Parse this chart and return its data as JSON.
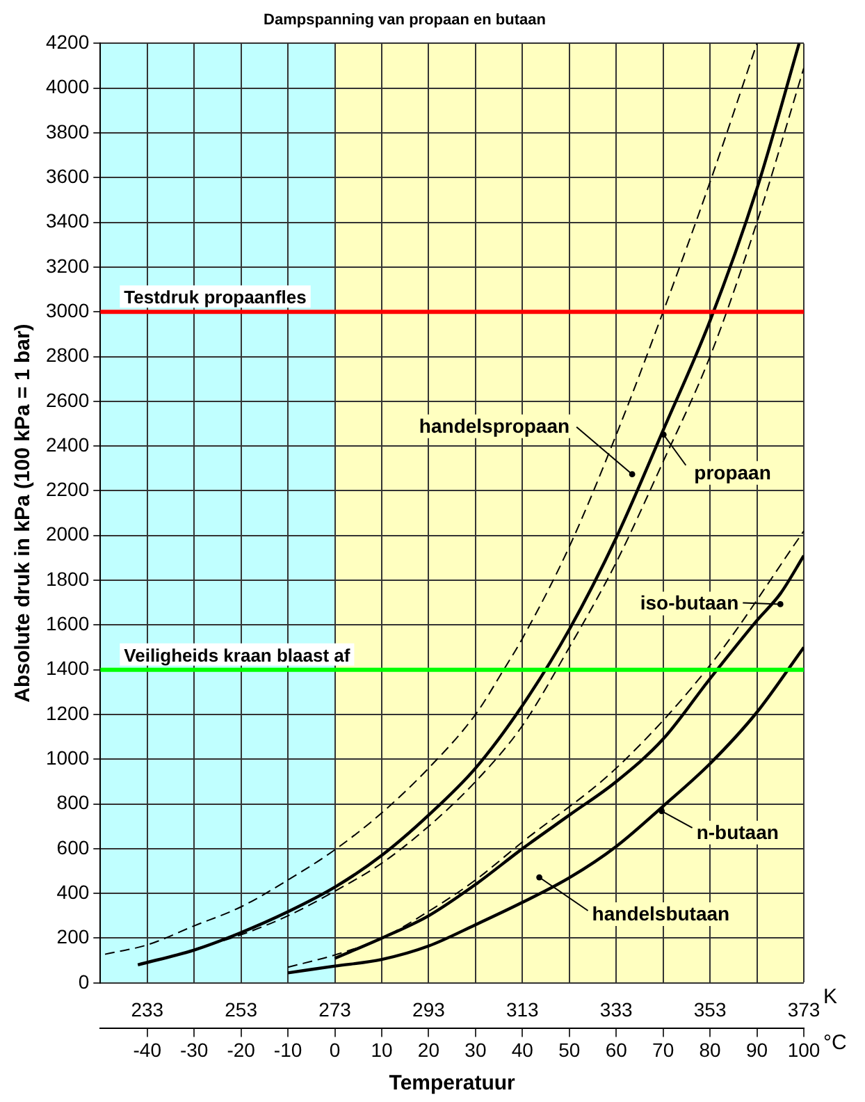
{
  "chart_data": {
    "type": "line",
    "title": "Dampspanning van propaan en butaan",
    "xlabel": "Temperatuur",
    "ylabel": "Absolute druk in kPa (100 kPa = 1 bar)",
    "xlim": [
      -50,
      100
    ],
    "xticks": [
      -40,
      -30,
      -20,
      -10,
      0,
      10,
      20,
      30,
      40,
      50,
      60,
      70,
      80,
      90,
      100
    ],
    "x2lim": [
      223,
      373
    ],
    "x2ticks": [
      233,
      253,
      273,
      293,
      313,
      333,
      353,
      373
    ],
    "ylim": [
      0,
      4200
    ],
    "yticks": [
      0,
      200,
      400,
      600,
      800,
      1000,
      1200,
      1400,
      1600,
      1800,
      2000,
      2200,
      2400,
      2600,
      2800,
      3000,
      3200,
      3400,
      3600,
      3800,
      4000,
      4200
    ],
    "grid": true,
    "legend": false,
    "marker": "none",
    "series": [
      {
        "color": "#000000",
        "line_style": "solid",
        "x": [
          -42,
          -30,
          -20,
          -10,
          0,
          10,
          20,
          30,
          40,
          50,
          60,
          70,
          80,
          90,
          99
        ],
        "values": [
          81,
          147,
          225,
          318,
          428,
          570,
          750,
          960,
          1240,
          1580,
          1990,
          2470,
          2960,
          3550,
          4200
        ]
      },
      {
        "color": "#000000",
        "line_style": "dashed",
        "x": [
          -49,
          -40,
          -30,
          -20,
          -10,
          0,
          10,
          20,
          30,
          36,
          40,
          50,
          60,
          70,
          80,
          90
        ],
        "values": [
          128,
          170,
          255,
          340,
          460,
          595,
          760,
          960,
          1200,
          1400,
          1540,
          1950,
          2450,
          3000,
          3580,
          4200
        ]
      },
      {
        "color": "#000000",
        "line_style": "dashed",
        "x": [
          -30,
          -20,
          -10,
          0,
          10,
          20,
          30,
          40,
          50,
          60,
          70,
          80,
          90,
          100
        ],
        "values": [
          150,
          215,
          300,
          410,
          535,
          700,
          900,
          1150,
          1500,
          1880,
          2330,
          2800,
          3400,
          4090
        ]
      },
      {
        "color": "#000000",
        "line_style": "solid",
        "x": [
          0,
          10,
          20,
          30,
          40,
          50,
          60,
          70,
          80,
          90,
          95,
          100
        ],
        "values": [
          110,
          200,
          300,
          440,
          600,
          750,
          900,
          1090,
          1360,
          1620,
          1740,
          1910
        ]
      },
      {
        "color": "#000000",
        "line_style": "solid",
        "x": [
          -10,
          0,
          10,
          20,
          30,
          40,
          50,
          60,
          70,
          80,
          90,
          100
        ],
        "values": [
          45,
          75,
          105,
          165,
          260,
          360,
          470,
          610,
          790,
          980,
          1210,
          1500
        ]
      },
      {
        "color": "#000000",
        "line_style": "dashed",
        "x": [
          -10,
          0,
          10,
          20,
          30,
          40,
          60,
          80,
          100
        ],
        "values": [
          70,
          125,
          200,
          320,
          460,
          630,
          960,
          1420,
          2020
        ]
      }
    ],
    "ref_lines": [
      {
        "axis": "y",
        "value": 3000,
        "label": "Testdruk propaanfles",
        "color": "#ff0000"
      },
      {
        "axis": "y",
        "value": 1400,
        "label": "Veiligheids kraan blaast af",
        "color": "#00ff00"
      }
    ],
    "bands": [
      {
        "axis": "x",
        "from": -50,
        "to": 0,
        "color": "#c0ffff"
      },
      {
        "axis": "x",
        "from": 0,
        "to": 100,
        "color": "#ffffc0"
      }
    ],
    "annotations": [
      {
        "text": "propaan",
        "x": 70.1,
        "y": 2451
      },
      {
        "text": "handelspropaan",
        "x": 63.4,
        "y": 2274
      },
      {
        "text": "iso-butaan",
        "x": 95,
        "y": 1693
      },
      {
        "text": "n-butaan",
        "x": 69.7,
        "y": 768
      },
      {
        "text": "handelsbutaan",
        "x": 43.6,
        "y": 472
      },
      "K",
      "°C"
    ]
  }
}
